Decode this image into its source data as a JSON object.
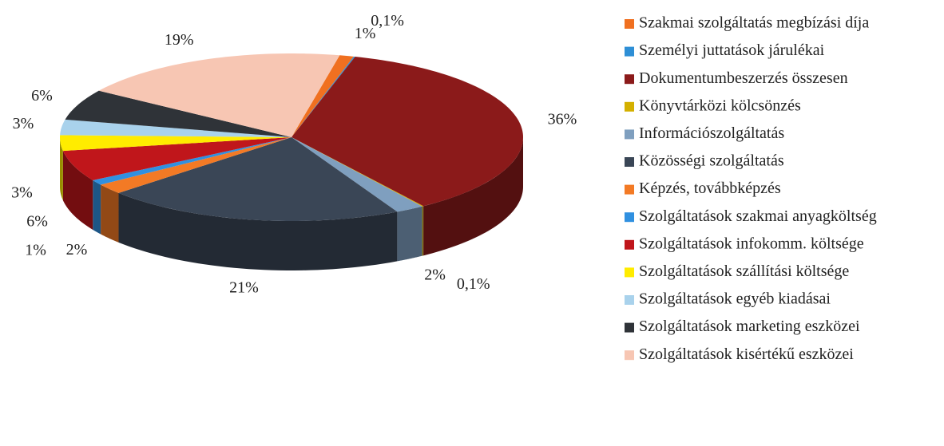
{
  "chart_data": {
    "type": "pie3d",
    "categories": [
      "Szakmai szolgáltatás megbízási díja",
      "Személyi juttatások járulékai",
      "Dokumentumbeszerzés összesen",
      "Könyvtárközi kölcsönzés",
      "Információszolgáltatás",
      "Közösségi szolgáltatás",
      "Képzés, továbbképzés",
      "Szolgáltatások szakmai anyagköltség",
      "Szolgáltatások infokomm. költsége",
      "Szolgáltatások szállítási költsége",
      "Szolgáltatások egyéb kiadásai",
      "Szolgáltatások marketing eszközei",
      "Szolgáltatások kisértékű eszközei"
    ],
    "values": [
      1,
      0.1,
      36,
      0.1,
      2,
      21,
      2,
      1,
      6,
      3,
      3,
      6,
      19
    ],
    "value_labels": [
      "1%",
      "0,1%",
      "36%",
      "0,1%",
      "2%",
      "21%",
      "2%",
      "1%",
      "6%",
      "3%",
      "3%",
      "6%",
      "19%"
    ],
    "colors": [
      "#f07020",
      "#2e8fd6",
      "#8b1a1a",
      "#d4b000",
      "#7f9fbf",
      "#3a4656",
      "#f37a25",
      "#3090e0",
      "#c0161b",
      "#ffec00",
      "#a9d2ec",
      "#2f3338",
      "#f7c6b3"
    ],
    "legend": "right"
  }
}
